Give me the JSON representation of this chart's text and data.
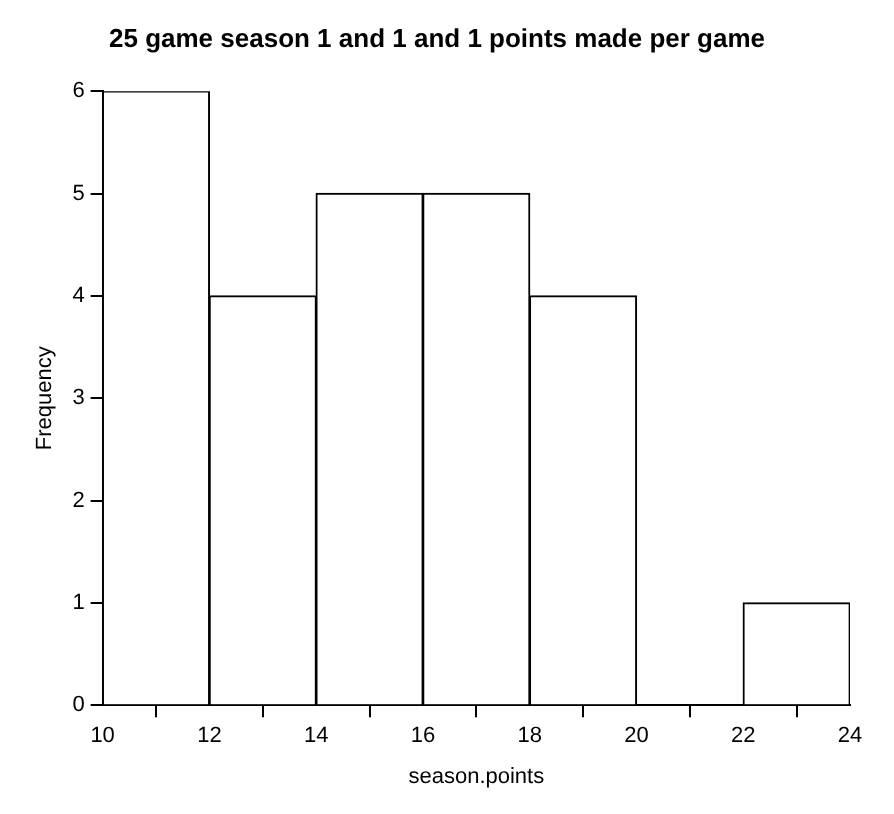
{
  "chart_data": {
    "type": "histogram",
    "title": "25 game season 1 and 1 and 1 points made per game",
    "xlabel": "season.points",
    "ylabel": "Frequency",
    "bins": [
      10,
      12,
      14,
      16,
      18,
      20,
      22,
      24
    ],
    "values": [
      6,
      4,
      5,
      5,
      4,
      0,
      1
    ],
    "color": "#ffffff",
    "xlim": [
      10,
      24
    ],
    "xticks": [
      10,
      12,
      14,
      16,
      18,
      20,
      22,
      24
    ],
    "ylim": [
      0,
      6
    ],
    "yticks": [
      0,
      1,
      2,
      3,
      4,
      5,
      6
    ],
    "grid": false,
    "legend": false
  }
}
